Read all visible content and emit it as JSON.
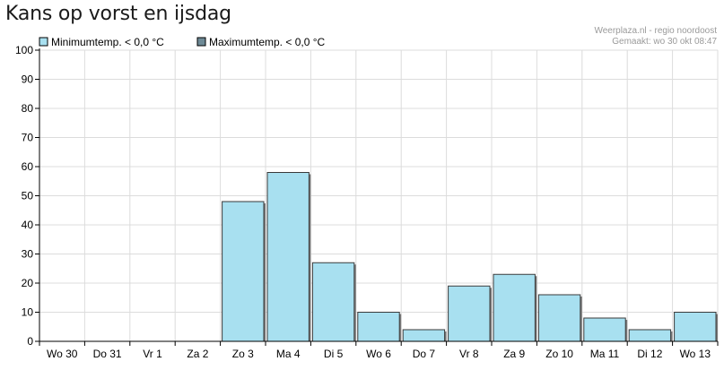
{
  "header": {
    "title": "Kans op vorst en ijsdag",
    "source_line1": "Weerplaza.nl - regio noordoost",
    "source_line2": "Gemaakt: wo 30 okt 08:47"
  },
  "colors": {
    "minimum": "#a8e0f0",
    "maximum": "#6e8a96",
    "grid": "#dcdcdc",
    "bar_border": "#3a3a3a"
  },
  "chart_data": {
    "type": "bar",
    "title": "",
    "xlabel": "",
    "ylabel": "",
    "ylim": [
      0,
      100
    ],
    "yticks": [
      0,
      10,
      20,
      30,
      40,
      50,
      60,
      70,
      80,
      90,
      100
    ],
    "grid": true,
    "legend_position": "top-left",
    "categories": [
      "Wo 30",
      "Do 31",
      "Vr 1",
      "Za 2",
      "Zo 3",
      "Ma 4",
      "Di 5",
      "Wo 6",
      "Do 7",
      "Vr 8",
      "Za 9",
      "Zo 10",
      "Ma 11",
      "Di 12",
      "Wo 13"
    ],
    "series": [
      {
        "name": "Minimumtemp. < 0,0 °C",
        "values": [
          0,
          0,
          0,
          0,
          48,
          58,
          27,
          10,
          4,
          19,
          23,
          16,
          8,
          4,
          10
        ]
      },
      {
        "name": "Maximumtemp. < 0,0 °C",
        "values": [
          0,
          0,
          0,
          0,
          0,
          0,
          0,
          0,
          0,
          0,
          0,
          0,
          0,
          0,
          0
        ]
      }
    ]
  }
}
